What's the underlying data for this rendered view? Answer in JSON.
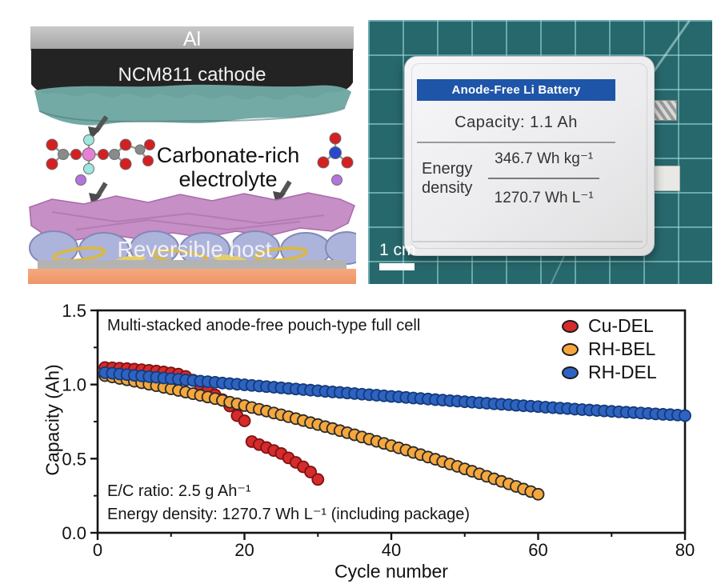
{
  "schematic": {
    "al_label": "Al",
    "cathode_label": "NCM811 cathode",
    "electrolyte_label_line1": "Carbonate-rich",
    "electrolyte_label_line2": "electrolyte",
    "host_label": "Reversible host"
  },
  "photo": {
    "header": "Anode-Free Li Battery",
    "capacity_line": "Capacity:  1.1 Ah",
    "energy_label_line1": "Energy",
    "energy_label_line2": "density",
    "energy_gravimetric": "346.7 Wh kg⁻¹",
    "energy_volumetric": "1270.7 Wh L⁻¹",
    "scale_bar_label": "1 cm",
    "mat_color": "#27686c",
    "header_color": "#1e55a8"
  },
  "chart_data": {
    "type": "scatter",
    "title": "Multi-stacked anode-free pouch-type full cell",
    "xlabel": "Cycle number",
    "ylabel": "Capacity (Ah)",
    "xlim": [
      0,
      80
    ],
    "ylim": [
      0.0,
      1.5
    ],
    "x_ticks": [
      0,
      20,
      40,
      60,
      80
    ],
    "x_minor_ticks": [
      10,
      30,
      50,
      70
    ],
    "y_ticks": [
      {
        "v": 0.0,
        "label": "0.0"
      },
      {
        "v": 0.5,
        "label": "0.5"
      },
      {
        "v": 1.0,
        "label": "1.0"
      },
      {
        "v": 1.5,
        "label": "1.5"
      }
    ],
    "y_minor_ticks": [
      0.25,
      0.75,
      1.25
    ],
    "grid": false,
    "legend_position": "top-right-inside",
    "annotations": [
      "E/C ratio: 2.5 g Ah⁻¹",
      "Energy density: 1270.7 Wh L⁻¹ (including package)"
    ],
    "x_is_cycle_index_starting_at": 1,
    "series": [
      {
        "name": "Cu-DEL",
        "color": "#d52b2b",
        "edge": "#7e1212",
        "values": [
          1.115,
          1.113,
          1.11,
          1.107,
          1.104,
          1.1,
          1.096,
          1.091,
          1.085,
          1.078,
          1.07,
          1.055,
          1.03,
          0.995,
          0.96,
          0.93,
          0.898,
          0.855,
          0.79,
          0.755,
          0.615,
          0.595,
          0.575,
          0.555,
          0.535,
          0.505,
          0.475,
          0.445,
          0.41,
          0.36
        ]
      },
      {
        "name": "RH-BEL",
        "color": "#f5a73d",
        "edge": "#2a2a2a",
        "values": [
          1.06,
          1.051,
          1.041,
          1.032,
          1.022,
          1.012,
          1.002,
          0.992,
          0.981,
          0.971,
          0.96,
          0.949,
          0.938,
          0.927,
          0.916,
          0.905,
          0.893,
          0.881,
          0.87,
          0.858,
          0.845,
          0.833,
          0.821,
          0.808,
          0.796,
          0.783,
          0.77,
          0.757,
          0.743,
          0.73,
          0.716,
          0.703,
          0.689,
          0.675,
          0.661,
          0.646,
          0.632,
          0.617,
          0.603,
          0.588,
          0.573,
          0.558,
          0.542,
          0.527,
          0.511,
          0.496,
          0.48,
          0.464,
          0.448,
          0.431,
          0.415,
          0.398,
          0.381,
          0.364,
          0.347,
          0.33,
          0.313,
          0.295,
          0.278,
          0.26
        ]
      },
      {
        "name": "RH-DEL",
        "color": "#2e63c1",
        "edge": "#143a78",
        "values": [
          1.08,
          1.076,
          1.071,
          1.067,
          1.062,
          1.058,
          1.053,
          1.049,
          1.044,
          1.04,
          1.036,
          1.031,
          1.027,
          1.023,
          1.019,
          1.015,
          1.01,
          1.006,
          1.002,
          0.998,
          0.994,
          0.99,
          0.986,
          0.982,
          0.978,
          0.974,
          0.97,
          0.966,
          0.962,
          0.958,
          0.954,
          0.95,
          0.947,
          0.943,
          0.939,
          0.935,
          0.931,
          0.928,
          0.924,
          0.92,
          0.917,
          0.913,
          0.909,
          0.906,
          0.902,
          0.898,
          0.895,
          0.891,
          0.888,
          0.884,
          0.881,
          0.877,
          0.874,
          0.87,
          0.867,
          0.864,
          0.86,
          0.857,
          0.854,
          0.851,
          0.847,
          0.844,
          0.841,
          0.838,
          0.834,
          0.831,
          0.828,
          0.825,
          0.822,
          0.819,
          0.816,
          0.813,
          0.811,
          0.808,
          0.805,
          0.802,
          0.799,
          0.797,
          0.794,
          0.79
        ]
      }
    ]
  }
}
